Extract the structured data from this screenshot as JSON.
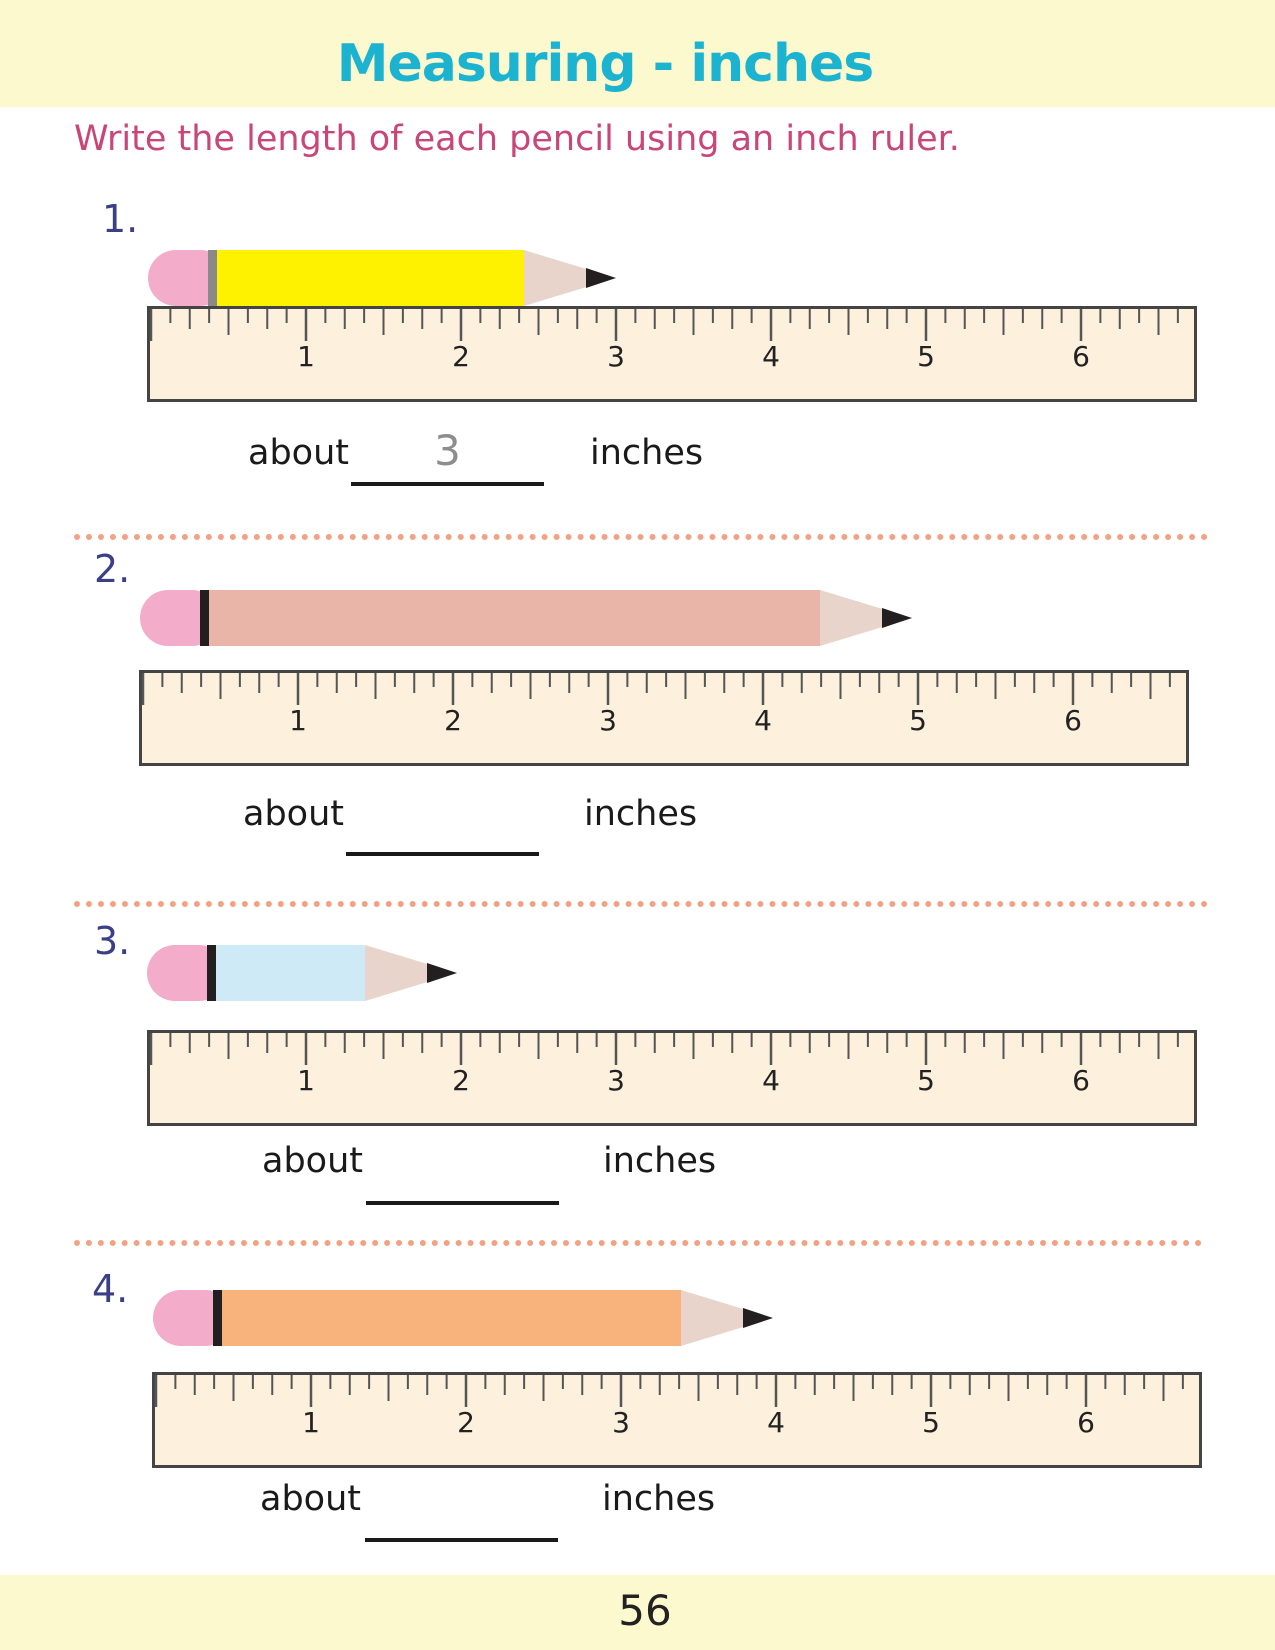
{
  "title": "Measuring - inches",
  "instructions": "Write the length of each pencil using an inch ruler.",
  "page_number": "56",
  "ruler": {
    "tick_labels": [
      "1",
      "2",
      "3",
      "4",
      "5",
      "6"
    ]
  },
  "problems": [
    {
      "number": "1.",
      "about_label": "about",
      "answer": "3",
      "unit_label": "inches",
      "pencil_body_color": "#fff200",
      "pencil_band_color": "#8a8a8a",
      "pencil_length_inches": 3
    },
    {
      "number": "2.",
      "about_label": "about",
      "answer": "",
      "unit_label": "inches",
      "pencil_body_color": "#e9b5a8",
      "pencil_band_color": "#231f20",
      "pencil_length_inches": 5
    },
    {
      "number": "3.",
      "about_label": "about",
      "answer": "",
      "unit_label": "inches",
      "pencil_body_color": "#cdeaf6",
      "pencil_band_color": "#231f20",
      "pencil_length_inches": 2
    },
    {
      "number": "4.",
      "about_label": "about",
      "answer": "",
      "unit_label": "inches",
      "pencil_body_color": "#f8b27c",
      "pencil_band_color": "#231f20",
      "pencil_length_inches": 4
    }
  ],
  "colors": {
    "eraser": "#f3acc9",
    "wood": "#e8d4cb",
    "lead": "#231f20",
    "ruler_fill": "#fdf0dc",
    "ruler_stroke": "#444444",
    "divider": "#f2a183"
  }
}
